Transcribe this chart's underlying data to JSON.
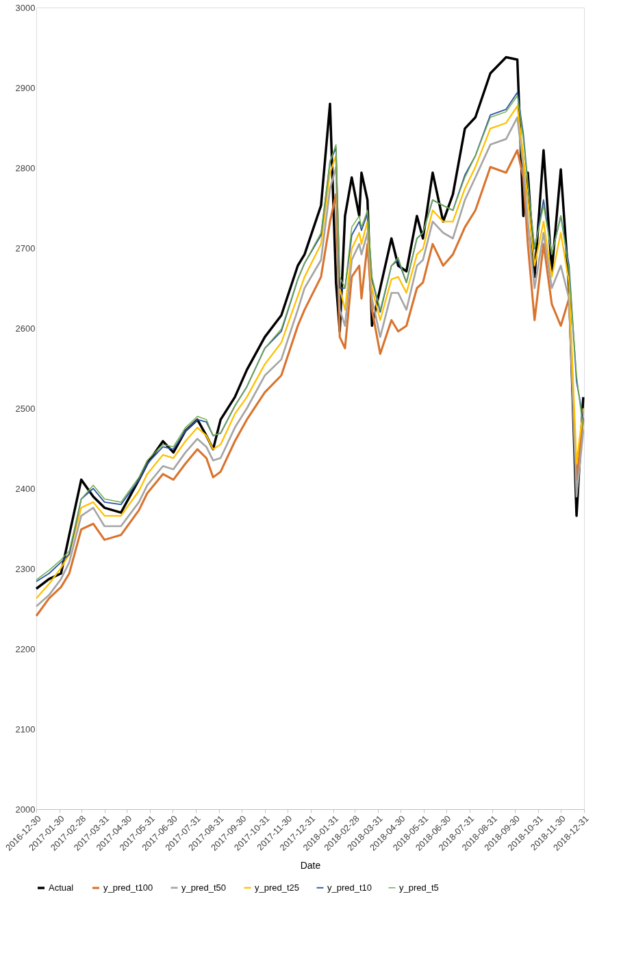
{
  "chart_data": {
    "type": "line",
    "xlabel": "Date",
    "legend": "bottom",
    "grid": false,
    "marker": "none",
    "line_style": "solid",
    "xlim": [
      "2016-12-30",
      "2018-12-31"
    ],
    "xticks": [
      "2016-12-30",
      "2017-01-30",
      "2017-02-28",
      "2017-03-31",
      "2017-04-30",
      "2017-05-31",
      "2017-06-30",
      "2017-07-31",
      "2017-08-31",
      "2017-09-30",
      "2017-10-31",
      "2017-11-30",
      "2017-12-31",
      "2018-01-31",
      "2018-02-28",
      "2018-03-31",
      "2018-04-30",
      "2018-05-31",
      "2018-06-30",
      "2018-07-31",
      "2018-08-31",
      "2018-09-30",
      "2018-10-31",
      "2018-11-30",
      "2018-12-31"
    ],
    "ylim": [
      2000,
      3000
    ],
    "yticks": [
      2000,
      2100,
      2200,
      2300,
      2400,
      2500,
      2600,
      2700,
      2800,
      2900,
      3000
    ],
    "x": [
      "2016-12-30",
      "2017-01-16",
      "2017-02-01",
      "2017-02-12",
      "2017-02-28",
      "2017-03-16",
      "2017-03-31",
      "2017-04-22",
      "2017-05-16",
      "2017-05-27",
      "2017-06-17",
      "2017-07-01",
      "2017-07-17",
      "2017-08-02",
      "2017-08-14",
      "2017-08-23",
      "2017-09-02",
      "2017-09-21",
      "2017-10-07",
      "2017-10-31",
      "2017-11-22",
      "2017-12-14",
      "2017-12-23",
      "2018-01-14",
      "2018-01-26",
      "2018-02-03",
      "2018-02-08",
      "2018-02-15",
      "2018-02-24",
      "2018-03-06",
      "2018-03-09",
      "2018-03-17",
      "2018-03-23",
      "2018-04-03",
      "2018-04-18",
      "2018-04-27",
      "2018-05-08",
      "2018-05-22",
      "2018-05-30",
      "2018-06-12",
      "2018-06-26",
      "2018-07-09",
      "2018-07-25",
      "2018-08-08",
      "2018-08-28",
      "2018-09-18",
      "2018-10-03",
      "2018-10-11",
      "2018-10-17",
      "2018-10-26",
      "2018-11-07",
      "2018-11-18",
      "2018-11-30",
      "2018-12-11",
      "2018-12-21",
      "2018-12-30"
    ],
    "series": [
      {
        "name": "Actual",
        "color": "#000000",
        "values": [
          2275,
          2287,
          2294,
          2342,
          2411,
          2390,
          2376,
          2370,
          2411,
          2431,
          2459,
          2445,
          2472,
          2486,
          2466,
          2449,
          2486,
          2514,
          2548,
          2589,
          2616,
          2678,
          2692,
          2753,
          2880,
          2657,
          2596,
          2740,
          2788,
          2740,
          2794,
          2760,
          2603,
          2650,
          2712,
          2678,
          2671,
          2740,
          2712,
          2794,
          2733,
          2767,
          2849,
          2863,
          2918,
          2938,
          2935,
          2740,
          2794,
          2664,
          2822,
          2671,
          2798,
          2650,
          2366,
          2514
        ]
      },
      {
        "name": "y_pred_t100",
        "color": "#d9732e",
        "values": [
          2241,
          2263,
          2277,
          2294,
          2349,
          2356,
          2336,
          2342,
          2373,
          2394,
          2418,
          2411,
          2431,
          2449,
          2438,
          2414,
          2421,
          2459,
          2486,
          2520,
          2541,
          2603,
          2623,
          2664,
          2733,
          2767,
          2589,
          2575,
          2664,
          2678,
          2637,
          2705,
          2623,
          2568,
          2610,
          2596,
          2603,
          2650,
          2657,
          2705,
          2678,
          2692,
          2726,
          2747,
          2801,
          2794,
          2822,
          2788,
          2705,
          2610,
          2705,
          2630,
          2603,
          2637,
          2411,
          2486
        ]
      },
      {
        "name": "y_pred_t50",
        "color": "#a5a5a5",
        "values": [
          2253,
          2267,
          2287,
          2308,
          2366,
          2376,
          2353,
          2353,
          2383,
          2404,
          2428,
          2424,
          2445,
          2462,
          2452,
          2435,
          2438,
          2476,
          2500,
          2541,
          2561,
          2623,
          2650,
          2685,
          2774,
          2801,
          2623,
          2603,
          2685,
          2705,
          2692,
          2719,
          2637,
          2589,
          2644,
          2644,
          2623,
          2678,
          2685,
          2733,
          2719,
          2712,
          2760,
          2788,
          2829,
          2836,
          2863,
          2801,
          2733,
          2650,
          2719,
          2650,
          2678,
          2637,
          2390,
          2472
        ]
      },
      {
        "name": "y_pred_t25",
        "color": "#ffc000",
        "values": [
          2263,
          2281,
          2301,
          2318,
          2376,
          2383,
          2366,
          2366,
          2397,
          2418,
          2442,
          2438,
          2459,
          2476,
          2466,
          2449,
          2455,
          2493,
          2514,
          2555,
          2582,
          2640,
          2664,
          2705,
          2794,
          2815,
          2650,
          2623,
          2699,
          2719,
          2705,
          2733,
          2650,
          2610,
          2661,
          2664,
          2644,
          2692,
          2699,
          2747,
          2733,
          2733,
          2774,
          2801,
          2849,
          2856,
          2877,
          2815,
          2760,
          2678,
          2733,
          2664,
          2719,
          2657,
          2431,
          2500
        ]
      },
      {
        "name": "y_pred_t10",
        "color": "#2f55a4",
        "values": [
          2284,
          2294,
          2308,
          2318,
          2387,
          2400,
          2383,
          2380,
          2411,
          2431,
          2452,
          2449,
          2472,
          2486,
          2483,
          2466,
          2469,
          2503,
          2527,
          2575,
          2596,
          2661,
          2681,
          2716,
          2808,
          2825,
          2650,
          2650,
          2716,
          2733,
          2722,
          2743,
          2661,
          2620,
          2678,
          2685,
          2657,
          2712,
          2719,
          2760,
          2753,
          2747,
          2791,
          2815,
          2866,
          2873,
          2894,
          2842,
          2781,
          2699,
          2760,
          2692,
          2740,
          2678,
          2534,
          2486
        ]
      },
      {
        "name": "y_pred_t5",
        "color": "#70ad47",
        "values": [
          2286,
          2298,
          2311,
          2322,
          2387,
          2404,
          2387,
          2383,
          2414,
          2435,
          2455,
          2452,
          2476,
          2490,
          2486,
          2466,
          2469,
          2503,
          2527,
          2575,
          2599,
          2661,
          2681,
          2719,
          2808,
          2829,
          2664,
          2650,
          2726,
          2740,
          2726,
          2747,
          2664,
          2623,
          2678,
          2688,
          2657,
          2712,
          2719,
          2760,
          2753,
          2747,
          2788,
          2815,
          2863,
          2870,
          2890,
          2836,
          2781,
          2699,
          2753,
          2692,
          2740,
          2671,
          2541,
          2472
        ]
      }
    ]
  }
}
